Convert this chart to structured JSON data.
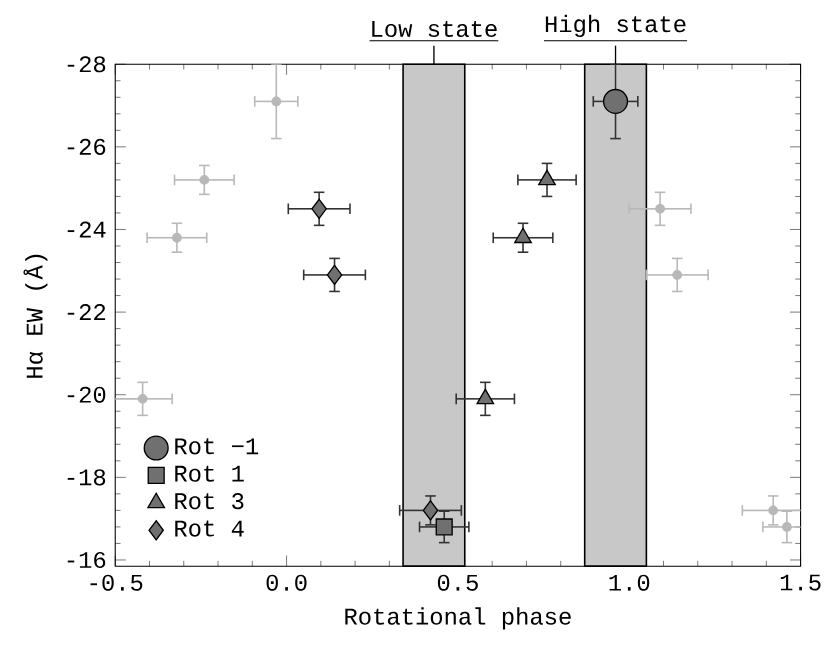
{
  "chart_data": {
    "type": "scatter",
    "xlabel": "Rotational phase",
    "ylabel": "Hα EW (Å)",
    "xlim": [
      -0.5,
      1.5
    ],
    "ylim": [
      -15.85,
      -28
    ],
    "xticks": [
      -0.5,
      {
        "value": 0,
        "label": "0.0"
      },
      0.5,
      {
        "value": 1,
        "label": "1.0"
      },
      1.5
    ],
    "yticks": [
      -28,
      -26,
      -24,
      -22,
      -20,
      -18,
      -16
    ],
    "legend": "bottom left",
    "bands": [
      {
        "axis": "x",
        "from": 0.34,
        "to": 0.52,
        "label": "Low state",
        "color": "#c8c8c8"
      },
      {
        "axis": "x",
        "from": 0.87,
        "to": 1.05,
        "label": "High state",
        "color": "#c8c8c8"
      }
    ],
    "series": [
      {
        "color": "#b8b8b8",
        "marker": "circle",
        "x": [
          -0.03,
          -0.24,
          -0.32,
          1.09,
          1.14,
          -0.42,
          1.42,
          1.46
        ],
        "values": [
          -27.1,
          -25.2,
          -23.8,
          -24.5,
          -22.9,
          -19.9,
          -17.2,
          -16.8
        ],
        "errors": [
          0.9,
          0.35,
          0.35,
          0.4,
          0.4,
          0.4,
          0.35,
          0.38
        ],
        "xerrors": [
          0.063,
          0.087,
          0.087,
          0.09,
          0.09,
          0.086,
          0.09,
          0.07
        ]
      },
      {
        "name": "Rot −1",
        "color": "#707070",
        "marker": "circle",
        "x": [
          0.96
        ],
        "values": [
          -27.1
        ],
        "errors": [
          0.9
        ],
        "xerrors": [
          0.065
        ]
      },
      {
        "name": "Rot 1",
        "color": "#707070",
        "marker": "square",
        "x": [
          0.46
        ],
        "values": [
          -16.8
        ],
        "errors": [
          0.38
        ],
        "xerrors": [
          0.072
        ]
      },
      {
        "name": "Rot 3",
        "color": "#707070",
        "marker": "triangle",
        "x": [
          0.76,
          0.69,
          0.58
        ],
        "values": [
          -25.2,
          -23.8,
          -19.9
        ],
        "errors": [
          0.4,
          0.35,
          0.4
        ],
        "xerrors": [
          0.085,
          0.087,
          0.085
        ]
      },
      {
        "name": "Rot 4",
        "color": "#707070",
        "marker": "diamond",
        "x": [
          0.095,
          0.14,
          0.42
        ],
        "values": [
          -24.5,
          -22.9,
          -17.2
        ],
        "errors": [
          0.4,
          0.4,
          0.35
        ],
        "xerrors": [
          0.09,
          0.09,
          0.09
        ]
      }
    ]
  }
}
